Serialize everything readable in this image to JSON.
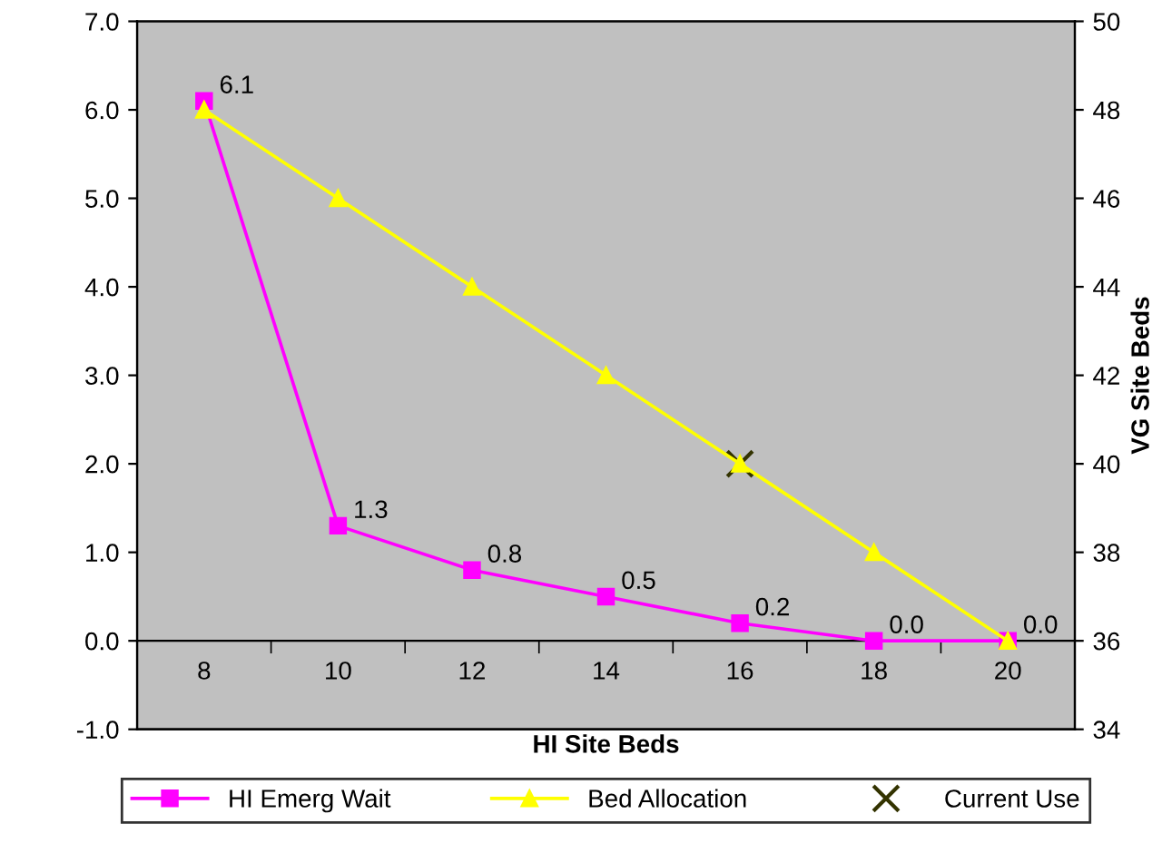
{
  "chart_data": {
    "type": "line",
    "xlabel": "HI Site Beds",
    "y2label": "VG Site Beds",
    "categories": [
      "8",
      "10",
      "12",
      "14",
      "16",
      "18",
      "20"
    ],
    "ylim": [
      -1,
      7
    ],
    "yticks": [
      {
        "value": -1,
        "label": "-1.0"
      },
      {
        "value": 0,
        "label": "0.0"
      },
      {
        "value": 1,
        "label": "1.0"
      },
      {
        "value": 2,
        "label": "2.0"
      },
      {
        "value": 3,
        "label": "3.0"
      },
      {
        "value": 4,
        "label": "4.0"
      },
      {
        "value": 5,
        "label": "5.0"
      },
      {
        "value": 6,
        "label": "6.0"
      },
      {
        "value": 7,
        "label": "7.0"
      }
    ],
    "y2lim": [
      34,
      50
    ],
    "y2ticks": [
      34,
      36,
      38,
      40,
      42,
      44,
      46,
      48,
      50
    ],
    "grid": false,
    "legend": "bottom",
    "series": [
      {
        "name": "HI Emerg Wait",
        "color": "#ff00ff",
        "marker": "square",
        "values": [
          6.1,
          1.3,
          0.8,
          0.5,
          0.2,
          0.0,
          0.0
        ],
        "value_labels": [
          "6.1",
          "1.3",
          "0.8",
          "0.5",
          "0.2",
          "0.0",
          "0.0"
        ]
      },
      {
        "name": "Bed Allocation",
        "type": "line",
        "color": "#ffff00",
        "marker": "triangle",
        "axis": "y2",
        "values": [
          48,
          46,
          44,
          42,
          40,
          38,
          36
        ]
      },
      {
        "name": "Current Use",
        "type": "scatter",
        "color": "#333300",
        "marker": "cross",
        "axis": "y2",
        "values": [
          null,
          null,
          null,
          null,
          40,
          null,
          null
        ]
      }
    ]
  }
}
